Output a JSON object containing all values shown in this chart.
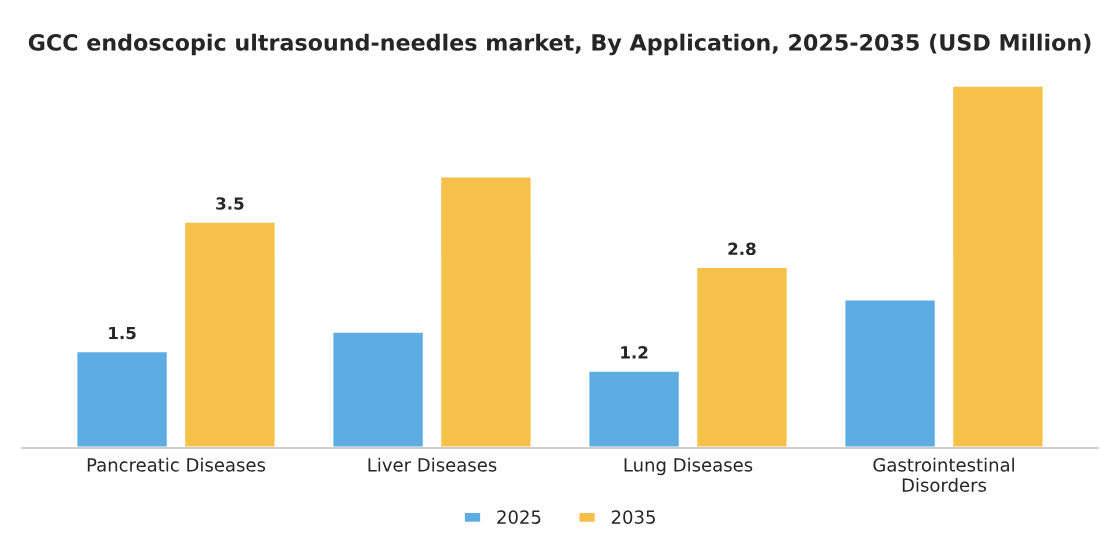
{
  "chart_data": {
    "type": "bar",
    "title": "GCC endoscopic ultrasound-needles market, By Application, 2025-2035 (USD Million)",
    "categories": [
      "Pancreatic Diseases",
      "Liver Diseases",
      "Lung Diseases",
      "Gastrointestinal\nDisorders"
    ],
    "series": [
      {
        "name": "2025",
        "color": "#5dade2",
        "values": [
          1.5,
          1.8,
          1.2,
          2.3
        ],
        "value_labels": [
          "1.5",
          null,
          "1.2",
          null
        ]
      },
      {
        "name": "2035",
        "color": "#f7c04a",
        "values": [
          3.5,
          4.2,
          2.8,
          5.6
        ],
        "value_labels": [
          "3.5",
          null,
          "2.8",
          null
        ]
      }
    ],
    "legend": "bottom",
    "grid": false
  }
}
